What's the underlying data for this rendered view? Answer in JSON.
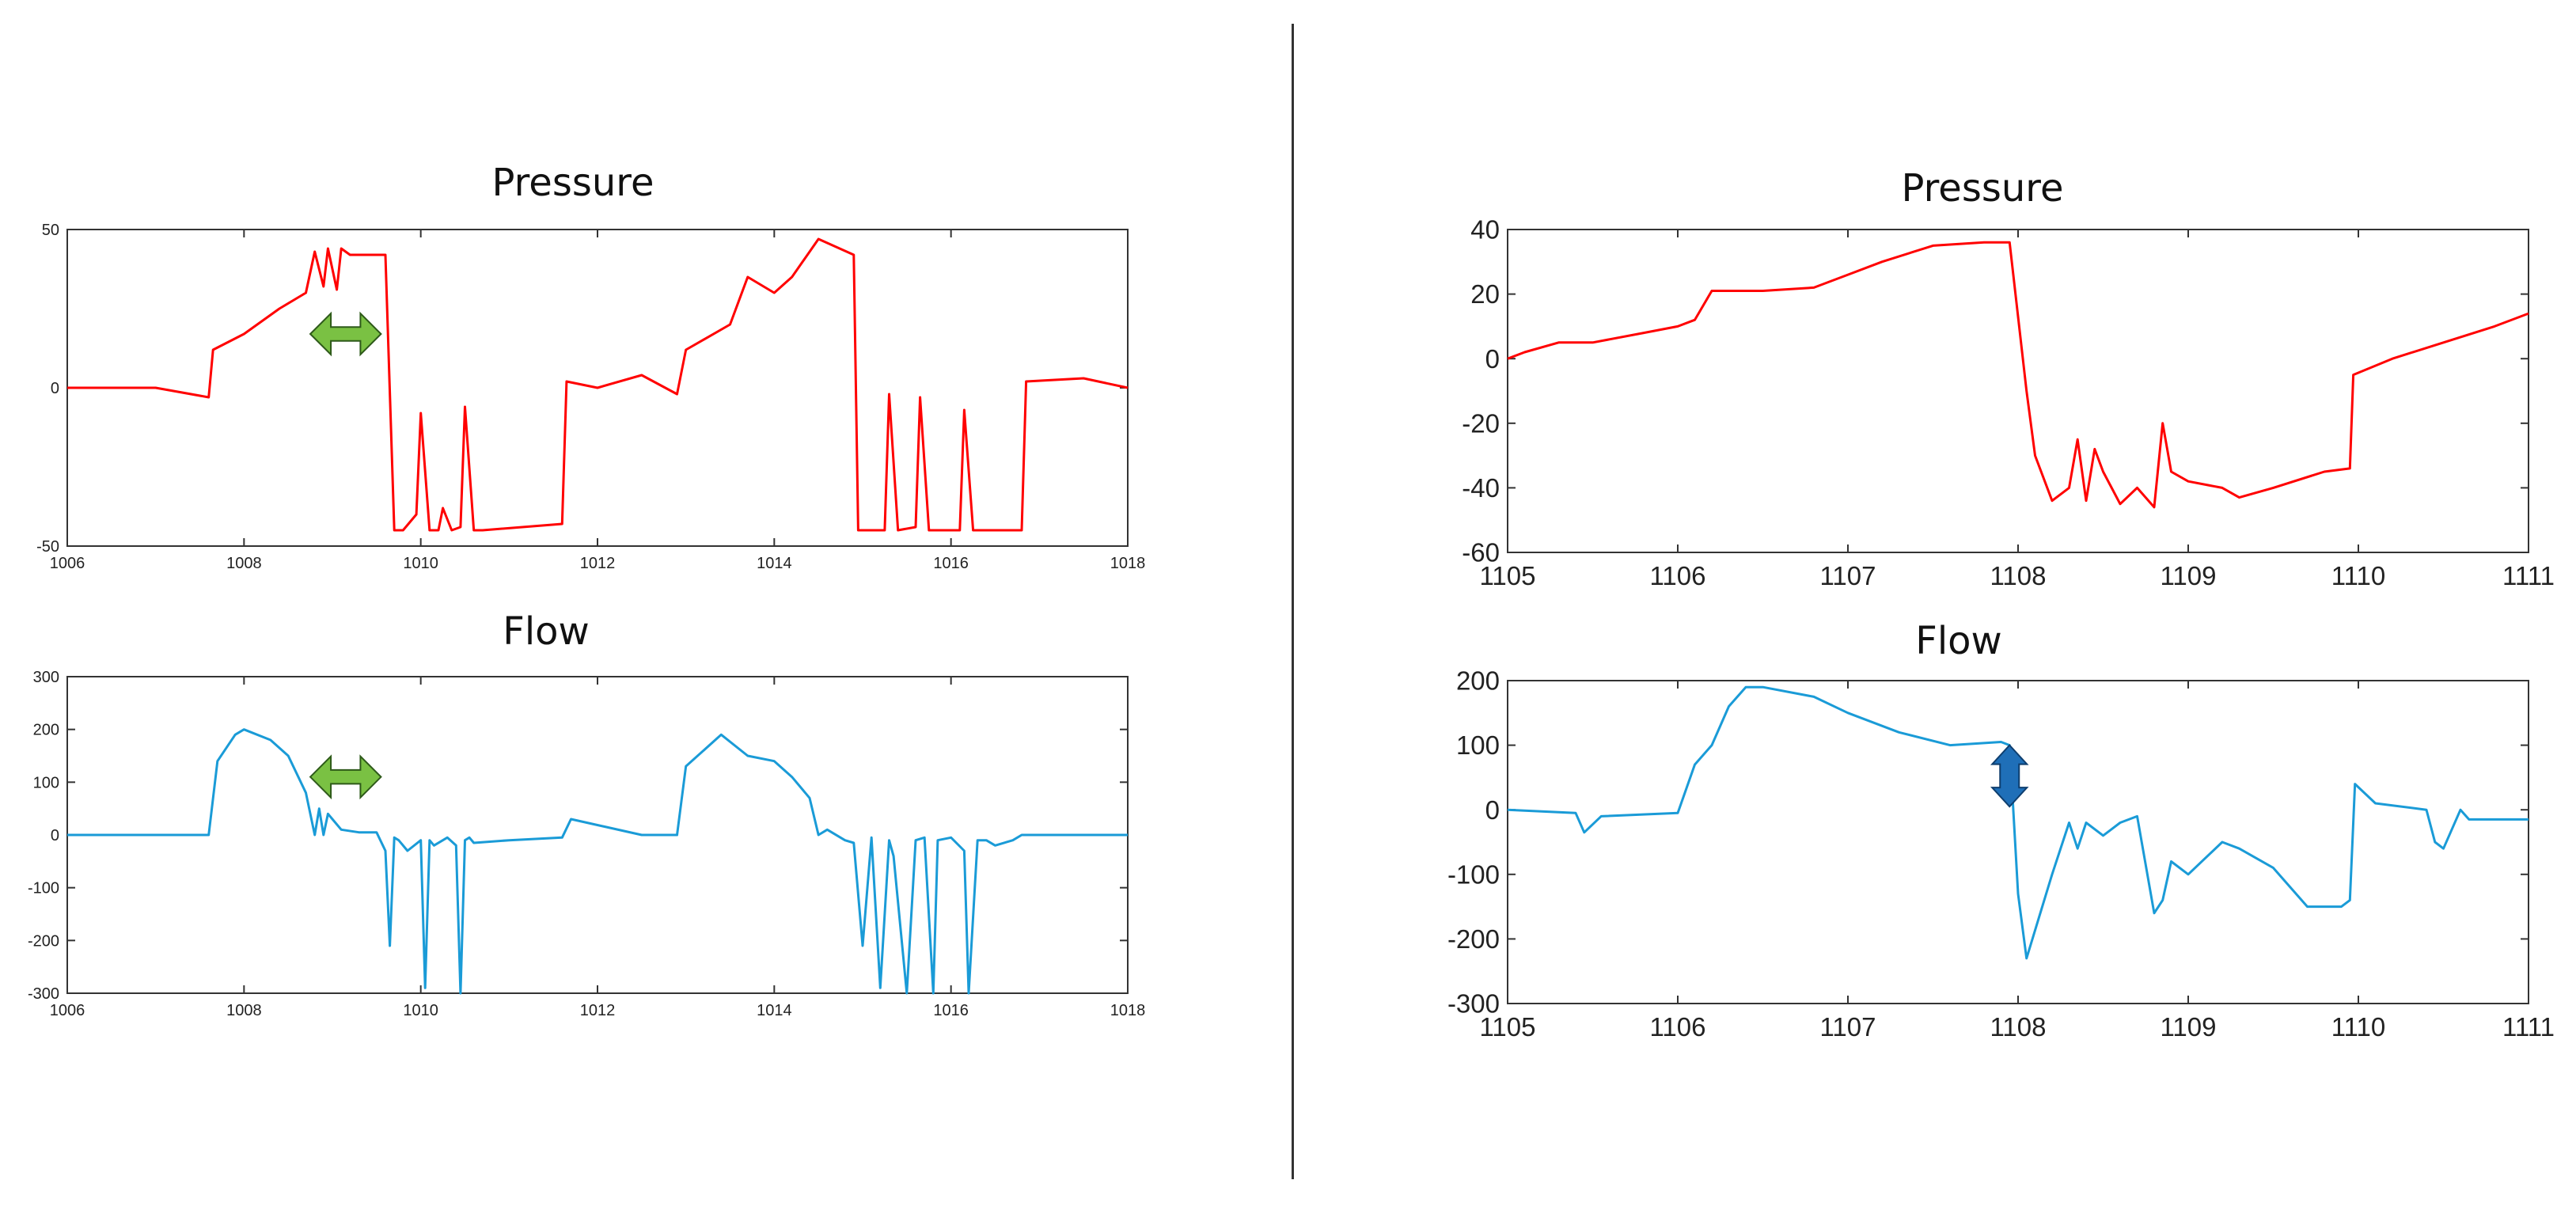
{
  "colors": {
    "pressure": "#ff0000",
    "flow": "#1a9bd7",
    "green_arrow": "#7ac143",
    "blue_arrow": "#1f6fb8"
  },
  "chart_data": [
    {
      "id": "left-pressure",
      "type": "line",
      "title": "Pressure",
      "xlim": [
        1006,
        1018
      ],
      "ylim": [
        -50,
        50
      ],
      "x_ticks": [
        "1006",
        "1008",
        "1010",
        "1012",
        "1014",
        "1016",
        "1018"
      ],
      "y_ticks": [
        "50",
        "0",
        "-50"
      ],
      "series": [
        {
          "color": "#ff0000",
          "x": [
            1006,
            1007,
            1007.6,
            1007.65,
            1008,
            1008.4,
            1008.7,
            1008.8,
            1008.9,
            1008.95,
            1009.05,
            1009.1,
            1009.2,
            1009.3,
            1009.6,
            1009.7,
            1009.8,
            1009.95,
            1010.0,
            1010.1,
            1010.2,
            1010.25,
            1010.35,
            1010.45,
            1010.5,
            1010.6,
            1010.7,
            1011.6,
            1011.65,
            1012.0,
            1012.5,
            1012.9,
            1013.0,
            1013.5,
            1013.7,
            1014.0,
            1014.2,
            1014.5,
            1014.9,
            1014.95,
            1015.1,
            1015.25,
            1015.3,
            1015.4,
            1015.6,
            1015.65,
            1015.75,
            1015.9,
            1016.1,
            1016.15,
            1016.25,
            1016.4,
            1016.8,
            1016.85,
            1017.5,
            1018
          ],
          "y": [
            0,
            0,
            -3,
            12,
            17,
            25,
            30,
            43,
            32,
            44,
            31,
            44,
            42,
            42,
            42,
            -45,
            -45,
            -40,
            -8,
            -45,
            -45,
            -38,
            -45,
            -44,
            -6,
            -45,
            -45,
            -43,
            2,
            0,
            4,
            -2,
            12,
            20,
            35,
            30,
            35,
            47,
            42,
            -45,
            -45,
            -45,
            -2,
            -45,
            -44,
            -3,
            -45,
            -45,
            -45,
            -7,
            -45,
            -45,
            -45,
            2,
            3,
            0
          ]
        }
      ],
      "annotation": {
        "type": "double-arrow-horizontal",
        "x": [
          1008.75,
          1009.55
        ],
        "y": 17,
        "color": "#7ac143"
      }
    },
    {
      "id": "left-flow",
      "type": "line",
      "title": "Flow",
      "xlim": [
        1006,
        1018
      ],
      "ylim": [
        -300,
        300
      ],
      "x_ticks": [
        "1006",
        "1008",
        "1010",
        "1012",
        "1014",
        "1016",
        "1018"
      ],
      "y_ticks": [
        "300",
        "200",
        "100",
        "0",
        "-100",
        "-200",
        "-300"
      ],
      "series": [
        {
          "color": "#1a9bd7",
          "x": [
            1006,
            1007.6,
            1007.7,
            1007.9,
            1008.0,
            1008.3,
            1008.5,
            1008.7,
            1008.8,
            1008.85,
            1008.9,
            1008.95,
            1009.0,
            1009.1,
            1009.3,
            1009.5,
            1009.6,
            1009.65,
            1009.7,
            1009.75,
            1009.85,
            1010.0,
            1010.05,
            1010.1,
            1010.15,
            1010.3,
            1010.4,
            1010.45,
            1010.5,
            1010.55,
            1010.6,
            1011.0,
            1011.6,
            1011.7,
            1012.5,
            1012.9,
            1013.0,
            1013.4,
            1013.7,
            1014.0,
            1014.2,
            1014.4,
            1014.5,
            1014.6,
            1014.8,
            1014.9,
            1015.0,
            1015.1,
            1015.2,
            1015.3,
            1015.35,
            1015.5,
            1015.6,
            1015.7,
            1015.8,
            1015.85,
            1016.0,
            1016.15,
            1016.2,
            1016.3,
            1016.4,
            1016.5,
            1016.7,
            1016.8,
            1018
          ],
          "y": [
            0,
            0,
            140,
            190,
            200,
            180,
            150,
            80,
            0,
            50,
            0,
            40,
            30,
            10,
            5,
            5,
            -30,
            -210,
            -5,
            -10,
            -30,
            -10,
            -290,
            -10,
            -20,
            -5,
            -20,
            -300,
            -10,
            -5,
            -15,
            -10,
            -5,
            30,
            0,
            0,
            130,
            190,
            150,
            140,
            110,
            70,
            0,
            10,
            -10,
            -15,
            -210,
            -5,
            -290,
            -10,
            -40,
            -300,
            -10,
            -5,
            -300,
            -10,
            -5,
            -30,
            -300,
            -10,
            -10,
            -20,
            -10,
            0,
            0
          ]
        }
      ],
      "annotation": {
        "type": "double-arrow-horizontal",
        "x": [
          1008.75,
          1009.55
        ],
        "y": 110,
        "color": "#7ac143"
      }
    },
    {
      "id": "right-pressure",
      "type": "line",
      "title": "Pressure",
      "xlim": [
        1105,
        1111
      ],
      "ylim": [
        -60,
        40
      ],
      "x_ticks": [
        "1105",
        "1106",
        "1107",
        "1108",
        "1109",
        "1110",
        "1111"
      ],
      "y_ticks": [
        "40",
        "20",
        "0",
        "-20",
        "-40",
        "-60"
      ],
      "series": [
        {
          "color": "#ff0000",
          "x": [
            1105,
            1105.1,
            1105.3,
            1105.5,
            1105.8,
            1106.0,
            1106.1,
            1106.2,
            1106.5,
            1106.8,
            1107.0,
            1107.2,
            1107.5,
            1107.8,
            1107.95,
            1108.05,
            1108.1,
            1108.2,
            1108.3,
            1108.35,
            1108.4,
            1108.45,
            1108.5,
            1108.6,
            1108.7,
            1108.8,
            1108.85,
            1108.9,
            1109.0,
            1109.2,
            1109.3,
            1109.5,
            1109.8,
            1109.95,
            1109.97,
            1110.2,
            1110.5,
            1110.8,
            1111
          ],
          "y": [
            0,
            2,
            5,
            5,
            8,
            10,
            12,
            21,
            21,
            22,
            26,
            30,
            35,
            36,
            36,
            -10,
            -30,
            -44,
            -40,
            -25,
            -44,
            -28,
            -35,
            -45,
            -40,
            -46,
            -20,
            -35,
            -38,
            -40,
            -43,
            -40,
            -35,
            -34,
            -5,
            0,
            5,
            10,
            14
          ]
        }
      ]
    },
    {
      "id": "right-flow",
      "type": "line",
      "title": "Flow",
      "xlim": [
        1105,
        1111
      ],
      "ylim": [
        -300,
        200
      ],
      "x_ticks": [
        "1105",
        "1106",
        "1107",
        "1108",
        "1109",
        "1110",
        "1111"
      ],
      "y_ticks": [
        "200",
        "100",
        "0",
        "-100",
        "-200",
        "-300"
      ],
      "series": [
        {
          "color": "#1a9bd7",
          "x": [
            1105,
            1105.4,
            1105.45,
            1105.55,
            1106.0,
            1106.1,
            1106.2,
            1106.3,
            1106.4,
            1106.5,
            1106.8,
            1107.0,
            1107.3,
            1107.6,
            1107.9,
            1107.95,
            1108.0,
            1108.05,
            1108.2,
            1108.3,
            1108.35,
            1108.4,
            1108.5,
            1108.6,
            1108.7,
            1108.8,
            1108.85,
            1108.9,
            1109.0,
            1109.2,
            1109.3,
            1109.5,
            1109.7,
            1109.9,
            1109.95,
            1109.98,
            1110.1,
            1110.4,
            1110.45,
            1110.5,
            1110.6,
            1110.65,
            1111
          ],
          "y": [
            0,
            -5,
            -35,
            -10,
            -5,
            70,
            100,
            160,
            190,
            190,
            175,
            150,
            120,
            100,
            105,
            100,
            -130,
            -230,
            -100,
            -20,
            -60,
            -20,
            -40,
            -20,
            -10,
            -160,
            -140,
            -80,
            -100,
            -50,
            -60,
            -90,
            -150,
            -150,
            -140,
            40,
            10,
            0,
            -50,
            -60,
            0,
            -15,
            -15
          ]
        }
      ],
      "annotation": {
        "type": "double-arrow-vertical",
        "x": 1107.95,
        "y": [
          5,
          100
        ],
        "color": "#1f6fb8"
      }
    }
  ]
}
